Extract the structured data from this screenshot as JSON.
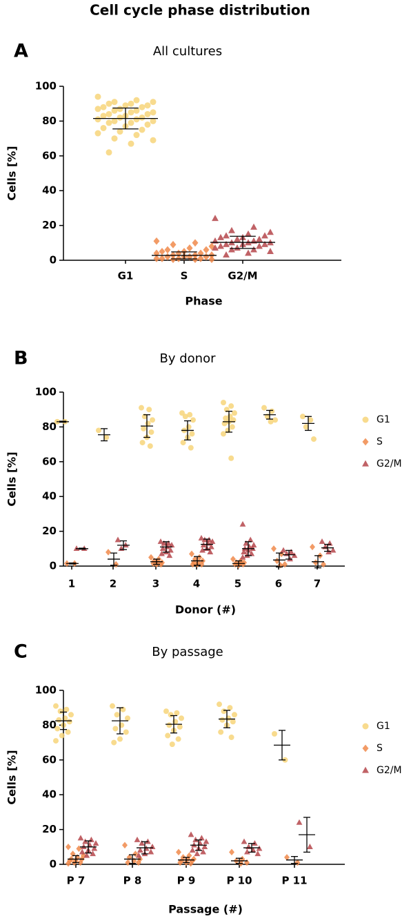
{
  "title": "Cell cycle phase distribution",
  "chart_data": [
    {
      "type": "dot",
      "panel": "A",
      "title": "All cultures",
      "xlabel": "Phase",
      "ylabel": "Cells [%]",
      "categories": [
        "G1",
        "S",
        "G2/M"
      ],
      "colors": [
        "#f7d57a",
        "#f08a4b",
        "#b5464b"
      ],
      "markers": [
        "circle",
        "diamond",
        "triangle"
      ],
      "values": [
        [
          94,
          92,
          91,
          91,
          90,
          90,
          89,
          89,
          88,
          88,
          87,
          87,
          86,
          86,
          85,
          85,
          84,
          84,
          83,
          83,
          82,
          82,
          81,
          81,
          80,
          80,
          79,
          79,
          78,
          77,
          76,
          75,
          74,
          73,
          72,
          70,
          69,
          67,
          62
        ],
        [
          11,
          10,
          9,
          8,
          7,
          6,
          6,
          5,
          5,
          4,
          4,
          4,
          3,
          3,
          3,
          2,
          2,
          2,
          2,
          1,
          1,
          1,
          1,
          0.5,
          0.5,
          0.5
        ],
        [
          24,
          19,
          17,
          16,
          15,
          14,
          14,
          13,
          13,
          12,
          12,
          11,
          11,
          10,
          10,
          10,
          9,
          9,
          9,
          8,
          8,
          7,
          7,
          6,
          6,
          5,
          4,
          3
        ]
      ],
      "mean": [
        81.5,
        2.8,
        10.3
      ],
      "sd": [
        6,
        2,
        3.5
      ],
      "ylim": [
        0,
        100
      ],
      "yticks": [
        0,
        20,
        40,
        60,
        80,
        100
      ]
    },
    {
      "type": "dot",
      "panel": "B",
      "title": "By donor",
      "xlabel": "Donor (#)",
      "ylabel": "Cells [%]",
      "categories": [
        "1",
        "2",
        "3",
        "4",
        "5",
        "6",
        "7"
      ],
      "legend": "right",
      "series": [
        {
          "name": "G1",
          "color": "#f7d57a",
          "marker": "circle",
          "values": [
            [
              83,
              83
            ],
            [
              78,
              74
            ],
            [
              91,
              90,
              86,
              84,
              82,
              79,
              77,
              74,
              71,
              69
            ],
            [
              88,
              87,
              86,
              84,
              80,
              78,
              76,
              74,
              71,
              68
            ],
            [
              94,
              92,
              90,
              88,
              86,
              85,
              84,
              83,
              82,
              80,
              78,
              76,
              62
            ],
            [
              91,
              89,
              86,
              84,
              83
            ],
            [
              86,
              84,
              80,
              73
            ]
          ],
          "mean": [
            83,
            75.5,
            80.5,
            78,
            83,
            87,
            82
          ],
          "sd": [
            0.3,
            3.5,
            6.5,
            5.5,
            6,
            2.5,
            4
          ]
        },
        {
          "name": "S",
          "color": "#f08a4b",
          "marker": "diamond",
          "values": [
            [
              1.5,
              1.5
            ],
            [
              8,
              1
            ],
            [
              5,
              4,
              3,
              2,
              2,
              1.5,
              1,
              1
            ],
            [
              7,
              5,
              4,
              3,
              2,
              2,
              1,
              1,
              1
            ],
            [
              4,
              3,
              2,
              2,
              1.5,
              1,
              1,
              0.5
            ],
            [
              10,
              7,
              3,
              1,
              0.5
            ],
            [
              11,
              6,
              2,
              1
            ]
          ],
          "mean": [
            1.5,
            4,
            2.5,
            3,
            1.5,
            3.5,
            2.5
          ],
          "sd": [
            0.3,
            3.5,
            1.5,
            2.5,
            1.5,
            4,
            3.5
          ]
        },
        {
          "name": "G2/M",
          "color": "#b5464b",
          "marker": "triangle",
          "values": [
            [
              10,
              10
            ],
            [
              15,
              12,
              10
            ],
            [
              14,
              13,
              13,
              12,
              11,
              10,
              9,
              8,
              7,
              6
            ],
            [
              16,
              15,
              15,
              14,
              13,
              12,
              11,
              10,
              9,
              8
            ],
            [
              24,
              15,
              13,
              12,
              11,
              10,
              10,
              9,
              8,
              7,
              6,
              5
            ],
            [
              9,
              8,
              7,
              6,
              4
            ],
            [
              14,
              13,
              11,
              9,
              8
            ]
          ],
          "mean": [
            10,
            12,
            11,
            12.5,
            10,
            6.5,
            10.5
          ],
          "sd": [
            0.3,
            2.5,
            3,
            3,
            4,
            2.5,
            2
          ]
        }
      ],
      "ylim": [
        0,
        100
      ],
      "yticks": [
        0,
        20,
        40,
        60,
        80,
        100
      ]
    },
    {
      "type": "dot",
      "panel": "C",
      "title": "By passage",
      "xlabel": "Passage (#)",
      "ylabel": "Cells [%]",
      "categories": [
        "P 7",
        "P 8",
        "P 9",
        "P 10",
        "P 11"
      ],
      "legend": "right",
      "series": [
        {
          "name": "G1",
          "color": "#f7d57a",
          "marker": "circle",
          "values": [
            [
              91,
              89,
              88,
              86,
              84,
              83,
              82,
              80,
              78,
              76,
              74,
              71
            ],
            [
              91,
              89,
              86,
              84,
              80,
              78,
              76,
              72,
              70
            ],
            [
              88,
              87,
              86,
              84,
              82,
              80,
              79,
              77,
              74,
              72,
              69
            ],
            [
              92,
              90,
              88,
              86,
              84,
              83,
              82,
              80,
              76,
              73
            ],
            [
              75,
              60
            ]
          ],
          "mean": [
            82.5,
            82.5,
            80.5,
            83.5,
            68.5
          ],
          "sd": [
            5,
            7.5,
            5,
            5,
            8.5
          ]
        },
        {
          "name": "S",
          "color": "#f08a4b",
          "marker": "diamond",
          "values": [
            [
              10,
              9,
              6,
              5,
              4,
              3,
              3,
              2,
              2,
              1,
              1,
              0.5
            ],
            [
              11,
              6,
              4,
              3,
              2,
              1,
              1
            ],
            [
              7,
              5,
              4,
              3,
              3,
              2,
              2,
              1,
              1,
              0.5
            ],
            [
              7,
              3,
              2,
              1,
              0.5
            ],
            [
              4,
              1
            ]
          ],
          "mean": [
            3,
            3,
            2.5,
            2,
            2.5
          ],
          "sd": [
            2,
            2.5,
            1.5,
            1.5,
            2
          ]
        },
        {
          "name": "G2/M",
          "color": "#b5464b",
          "marker": "triangle",
          "values": [
            [
              15,
              14,
              13,
              12,
              11,
              10,
              9,
              8,
              7,
              6,
              5
            ],
            [
              14,
              13,
              12,
              10,
              9,
              8,
              7,
              6,
              5
            ],
            [
              17,
              15,
              14,
              13,
              12,
              11,
              10,
              9,
              8,
              7,
              6
            ],
            [
              13,
              12,
              10,
              9,
              8,
              7,
              6
            ],
            [
              24,
              10
            ]
          ],
          "mean": [
            10,
            9.5,
            11,
            9.5,
            17
          ],
          "sd": [
            3.5,
            3.5,
            3,
            2.5,
            10
          ]
        }
      ],
      "ylim": [
        0,
        100
      ],
      "yticks": [
        0,
        20,
        40,
        60,
        80,
        100
      ]
    }
  ]
}
